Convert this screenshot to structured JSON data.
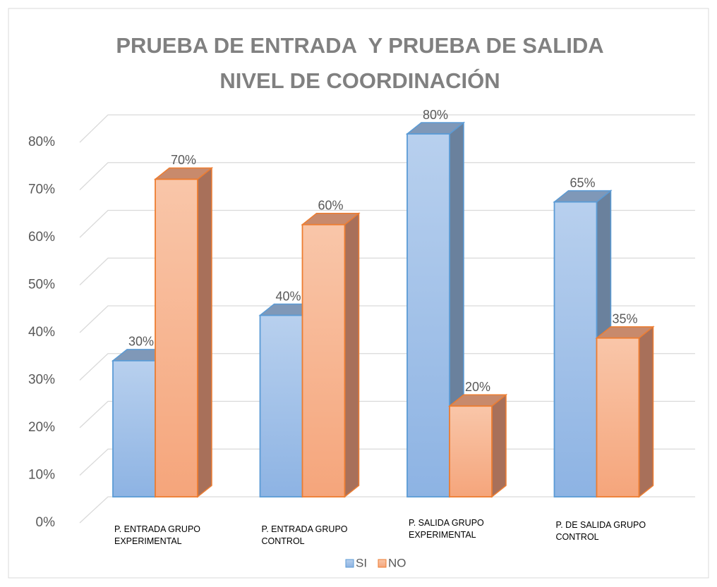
{
  "chart_data": {
    "type": "bar3d",
    "title": "PRUEBA DE ENTRADA  Y PRUEBA DE SALIDA NIVEL DE COORDINACIÓN",
    "categories": [
      "P. ENTRADA GRUPO EXPERIMENTAL",
      "P. ENTRADA GRUPO CONTROL",
      "P. SALIDA GRUPO EXPERIMENTAL",
      "P. DE SALIDA GRUPO CONTROL"
    ],
    "series": [
      {
        "name": "SI",
        "color": "#9dbfe8",
        "values": [
          30,
          40,
          80,
          65
        ],
        "value_labels": [
          "30%",
          "40%",
          "80%",
          "65%"
        ]
      },
      {
        "name": "NO",
        "color": "#f6b08c",
        "values": [
          70,
          60,
          20,
          35
        ],
        "value_labels": [
          "70%",
          "60%",
          "20%",
          "35%"
        ]
      }
    ],
    "ylim": [
      0,
      80
    ],
    "yticks": [
      {
        "value": 0,
        "label": "0%"
      },
      {
        "value": 10,
        "label": "10%"
      },
      {
        "value": 20,
        "label": "20%"
      },
      {
        "value": 30,
        "label": "30%"
      },
      {
        "value": 40,
        "label": "40%"
      },
      {
        "value": 50,
        "label": "50%"
      },
      {
        "value": 60,
        "label": "60%"
      },
      {
        "value": 70,
        "label": "70%"
      },
      {
        "value": 80,
        "label": "80%"
      }
    ],
    "grid": true,
    "legend": "bottom"
  }
}
